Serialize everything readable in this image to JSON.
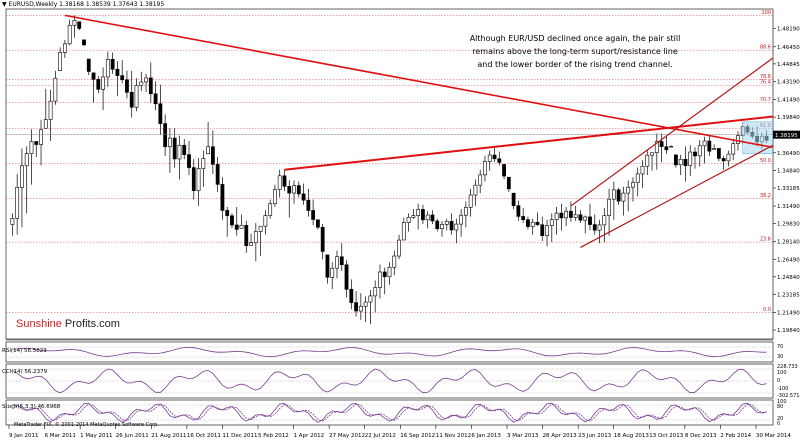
{
  "chart_header": "EURUSD,Weekly  1.38168 1.38539 1.37643 1.38195",
  "annotation": {
    "line1": "Although EUR/USD declined once again, the pair still",
    "line2": "remains above the long-term suport/resistance line",
    "line3": "and the lower border of the rising trend channel."
  },
  "brand": {
    "part1": "Sunshine",
    "part2": " Profits.com"
  },
  "copyright": "MetaTrader FIX, © 2001-2014 MetaQuotes Software Corp.",
  "colors": {
    "candle": "#000000",
    "trendline": "#e01010",
    "channel": "#b01818",
    "fib": "#e05050",
    "oscillator": "#7a3d8f",
    "price_badge": "#000000"
  },
  "chart_data": {
    "type": "candlestick",
    "symbol": "EURUSD",
    "timeframe": "Weekly",
    "last_price": "1.38195",
    "y_ticks": [
      "1.48190",
      "1.46450",
      "1.44845",
      "1.43190",
      "1.41490",
      "1.39840",
      "1.38195",
      "1.36490",
      "1.34840",
      "1.33185",
      "1.31490",
      "1.29830",
      "1.28140",
      "1.26490",
      "1.24840",
      "1.23185",
      "1.21490",
      "1.19840"
    ],
    "ylim": [
      1.19,
      1.5
    ],
    "x_ticks": [
      "9 Jan 2011",
      "6 Mar 2011",
      "1 May 2011",
      "26 Jun 2011",
      "21 Aug 2011",
      "16 Oct 2011",
      "11 Dec 2011",
      "5 Feb 2012",
      "1 Apr 2012",
      "27 May 2012",
      "22 Jul 2012",
      "16 Sep 2012",
      "11 Nov 2012",
      "6 Jan 2013",
      "3 Mar 2013",
      "28 Apr 2013",
      "23 Jun 2013",
      "18 Aug 2013",
      "13 Oct 2013",
      "8 Dec 2013",
      "2 Feb 2014",
      "30 Mar 2014"
    ],
    "fib_levels": [
      {
        "label": "100",
        "price": 1.494
      },
      {
        "label": "88.6",
        "price": 1.4613
      },
      {
        "label": "78.6",
        "price": 1.434
      },
      {
        "label": "76.4",
        "price": 1.4284
      },
      {
        "label": "70.7",
        "price": 1.4123
      },
      {
        "label": "61.8",
        "price": 1.3876
      },
      {
        "label": "50.0",
        "price": 1.3549
      },
      {
        "label": "38.2",
        "price": 1.3218
      },
      {
        "label": "23.6",
        "price": 1.281
      },
      {
        "label": "0.0",
        "price": 1.215
      }
    ],
    "lows": [
      1.287,
      1.288,
      1.295,
      1.308,
      1.335,
      1.361,
      1.353,
      1.388,
      1.376,
      1.41,
      1.442,
      1.454,
      1.466,
      1.473,
      1.48,
      1.465,
      1.438,
      1.412,
      1.421,
      1.405,
      1.427,
      1.439,
      1.418,
      1.43,
      1.416,
      1.398,
      1.404,
      1.423,
      1.422,
      1.412,
      1.405,
      1.382,
      1.362,
      1.346,
      1.351,
      1.34,
      1.359,
      1.344,
      1.321,
      1.315,
      1.333,
      1.364,
      1.345,
      1.328,
      1.302,
      1.286,
      1.294,
      1.287,
      1.294,
      1.271,
      1.278,
      1.263,
      1.268,
      1.288,
      1.303,
      1.314,
      1.323,
      1.329,
      1.304,
      1.317,
      1.323,
      1.316,
      1.305,
      1.297,
      1.293,
      1.265,
      1.242,
      1.237,
      1.247,
      1.254,
      1.229,
      1.218,
      1.211,
      1.208,
      1.206,
      1.204,
      1.215,
      1.228,
      1.232,
      1.241,
      1.25,
      1.265,
      1.283,
      1.291,
      1.303,
      1.293,
      1.298,
      1.294,
      1.298,
      1.291,
      1.286,
      1.292,
      1.288,
      1.28,
      1.286,
      1.295,
      1.305,
      1.315,
      1.327,
      1.338,
      1.348,
      1.356,
      1.353,
      1.34,
      1.328,
      1.312,
      1.301,
      1.299,
      1.293,
      1.288,
      1.296,
      1.282,
      1.277,
      1.281,
      1.288,
      1.292,
      1.296,
      1.3,
      1.301,
      1.299,
      1.289,
      1.292,
      1.288,
      1.28,
      1.281,
      1.287,
      1.302,
      1.316,
      1.306,
      1.31,
      1.319,
      1.324,
      1.332,
      1.344,
      1.348,
      1.349,
      1.356,
      1.364,
      1.372,
      1.351,
      1.344,
      1.338,
      1.343,
      1.35,
      1.352,
      1.355,
      1.362,
      1.368,
      1.357,
      1.349,
      1.352,
      1.358,
      1.367,
      1.373,
      1.382,
      1.378,
      1.371,
      1.368,
      1.374
    ],
    "highs": [
      1.308,
      1.345,
      1.369,
      1.371,
      1.387,
      1.376,
      1.396,
      1.425,
      1.424,
      1.442,
      1.464,
      1.471,
      1.49,
      1.494,
      1.488,
      1.471,
      1.453,
      1.44,
      1.437,
      1.445,
      1.46,
      1.459,
      1.451,
      1.452,
      1.442,
      1.442,
      1.435,
      1.441,
      1.439,
      1.45,
      1.432,
      1.429,
      1.401,
      1.388,
      1.388,
      1.381,
      1.378,
      1.376,
      1.359,
      1.36,
      1.367,
      1.394,
      1.386,
      1.361,
      1.342,
      1.314,
      1.308,
      1.314,
      1.307,
      1.301,
      1.289,
      1.299,
      1.296,
      1.311,
      1.321,
      1.335,
      1.349,
      1.349,
      1.339,
      1.339,
      1.338,
      1.336,
      1.331,
      1.321,
      1.302,
      1.298,
      1.269,
      1.262,
      1.273,
      1.28,
      1.264,
      1.246,
      1.235,
      1.233,
      1.23,
      1.236,
      1.245,
      1.26,
      1.257,
      1.262,
      1.273,
      1.288,
      1.304,
      1.308,
      1.312,
      1.317,
      1.316,
      1.31,
      1.311,
      1.303,
      1.301,
      1.303,
      1.308,
      1.303,
      1.312,
      1.319,
      1.331,
      1.34,
      1.349,
      1.362,
      1.367,
      1.371,
      1.366,
      1.354,
      1.342,
      1.327,
      1.32,
      1.313,
      1.305,
      1.303,
      1.309,
      1.305,
      1.302,
      1.308,
      1.314,
      1.317,
      1.314,
      1.319,
      1.315,
      1.311,
      1.306,
      1.317,
      1.307,
      1.302,
      1.313,
      1.331,
      1.338,
      1.332,
      1.333,
      1.339,
      1.342,
      1.351,
      1.358,
      1.368,
      1.365,
      1.383,
      1.383,
      1.381,
      1.371,
      1.363,
      1.363,
      1.371,
      1.372,
      1.37,
      1.377,
      1.38,
      1.382,
      1.373,
      1.369,
      1.362,
      1.367,
      1.378,
      1.385,
      1.394,
      1.392,
      1.389,
      1.39,
      1.384,
      1.386
    ],
    "series": [
      {
        "name": "RSI(14)",
        "current": "56.5823",
        "ticks": [
          "70",
          "30"
        ]
      },
      {
        "name": "CCI(14)",
        "current": "56.2379",
        "ticks": [
          "228.733",
          "100",
          "0",
          "-100",
          "-302.5718"
        ]
      },
      {
        "name": "Stoch(5,3,3)",
        "current": "46.6968",
        "ticks": [
          "100",
          "80",
          "20",
          "0"
        ]
      }
    ]
  }
}
